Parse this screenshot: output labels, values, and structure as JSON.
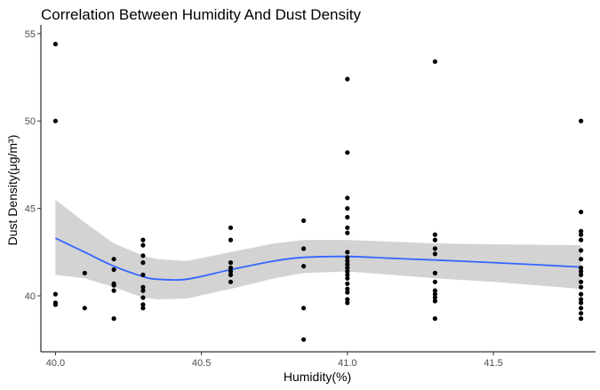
{
  "chart_data": {
    "type": "scatter",
    "title": "Correlation Between Humidity And Dust Density",
    "xlabel": "Humidity(%)",
    "ylabel": "Dust Density(μg/m³)",
    "xlim": [
      39.95,
      41.85
    ],
    "ylim": [
      36.8,
      55.5
    ],
    "xticks": [
      40.0,
      40.5,
      41.0,
      41.5
    ],
    "xtick_labels": [
      "40.0",
      "40.5",
      "41.0",
      "41.5"
    ],
    "yticks": [
      40,
      45,
      50,
      55
    ],
    "ytick_labels": [
      "40",
      "45",
      "50",
      "55"
    ],
    "grid": false,
    "legend": "none",
    "colors": {
      "points": "#000000",
      "smooth_line": "#3366ff",
      "confidence_band": "#d3d3d3"
    },
    "points": [
      {
        "x": 40.0,
        "y": 54.4
      },
      {
        "x": 40.0,
        "y": 50.0
      },
      {
        "x": 40.0,
        "y": 40.1
      },
      {
        "x": 40.0,
        "y": 39.6
      },
      {
        "x": 40.0,
        "y": 39.5
      },
      {
        "x": 40.1,
        "y": 41.3
      },
      {
        "x": 40.1,
        "y": 39.3
      },
      {
        "x": 40.2,
        "y": 42.1
      },
      {
        "x": 40.2,
        "y": 41.5
      },
      {
        "x": 40.2,
        "y": 40.7
      },
      {
        "x": 40.2,
        "y": 40.6
      },
      {
        "x": 40.2,
        "y": 40.3
      },
      {
        "x": 40.2,
        "y": 38.7
      },
      {
        "x": 40.3,
        "y": 43.2
      },
      {
        "x": 40.3,
        "y": 42.9
      },
      {
        "x": 40.3,
        "y": 42.3
      },
      {
        "x": 40.3,
        "y": 41.9
      },
      {
        "x": 40.3,
        "y": 41.2
      },
      {
        "x": 40.3,
        "y": 40.5
      },
      {
        "x": 40.3,
        "y": 40.3
      },
      {
        "x": 40.3,
        "y": 39.9
      },
      {
        "x": 40.3,
        "y": 39.5
      },
      {
        "x": 40.3,
        "y": 39.3
      },
      {
        "x": 40.6,
        "y": 43.9
      },
      {
        "x": 40.6,
        "y": 43.2
      },
      {
        "x": 40.6,
        "y": 41.9
      },
      {
        "x": 40.6,
        "y": 41.6
      },
      {
        "x": 40.6,
        "y": 41.4
      },
      {
        "x": 40.6,
        "y": 41.2
      },
      {
        "x": 40.6,
        "y": 40.8
      },
      {
        "x": 40.85,
        "y": 44.3
      },
      {
        "x": 40.85,
        "y": 42.7
      },
      {
        "x": 40.85,
        "y": 41.7
      },
      {
        "x": 40.85,
        "y": 39.3
      },
      {
        "x": 40.85,
        "y": 37.5
      },
      {
        "x": 41.0,
        "y": 52.4
      },
      {
        "x": 41.0,
        "y": 48.2
      },
      {
        "x": 41.0,
        "y": 45.6
      },
      {
        "x": 41.0,
        "y": 45.0
      },
      {
        "x": 41.0,
        "y": 44.5
      },
      {
        "x": 41.0,
        "y": 43.9
      },
      {
        "x": 41.0,
        "y": 43.6
      },
      {
        "x": 41.0,
        "y": 42.5
      },
      {
        "x": 41.0,
        "y": 42.2
      },
      {
        "x": 41.0,
        "y": 42.0
      },
      {
        "x": 41.0,
        "y": 41.8
      },
      {
        "x": 41.0,
        "y": 41.6
      },
      {
        "x": 41.0,
        "y": 41.4
      },
      {
        "x": 41.0,
        "y": 41.2
      },
      {
        "x": 41.0,
        "y": 41.0
      },
      {
        "x": 41.0,
        "y": 40.7
      },
      {
        "x": 41.0,
        "y": 40.4
      },
      {
        "x": 41.0,
        "y": 40.2
      },
      {
        "x": 41.0,
        "y": 39.8
      },
      {
        "x": 41.0,
        "y": 39.6
      },
      {
        "x": 41.3,
        "y": 53.4
      },
      {
        "x": 41.3,
        "y": 43.5
      },
      {
        "x": 41.3,
        "y": 43.2
      },
      {
        "x": 41.3,
        "y": 42.7
      },
      {
        "x": 41.3,
        "y": 42.4
      },
      {
        "x": 41.3,
        "y": 41.3
      },
      {
        "x": 41.3,
        "y": 40.8
      },
      {
        "x": 41.3,
        "y": 40.3
      },
      {
        "x": 41.3,
        "y": 40.1
      },
      {
        "x": 41.3,
        "y": 39.9
      },
      {
        "x": 41.3,
        "y": 39.7
      },
      {
        "x": 41.3,
        "y": 38.7
      },
      {
        "x": 41.8,
        "y": 50.0
      },
      {
        "x": 41.8,
        "y": 44.8
      },
      {
        "x": 41.8,
        "y": 43.7
      },
      {
        "x": 41.8,
        "y": 43.5
      },
      {
        "x": 41.8,
        "y": 43.2
      },
      {
        "x": 41.8,
        "y": 42.6
      },
      {
        "x": 41.8,
        "y": 42.1
      },
      {
        "x": 41.8,
        "y": 41.6
      },
      {
        "x": 41.8,
        "y": 41.4
      },
      {
        "x": 41.8,
        "y": 41.2
      },
      {
        "x": 41.8,
        "y": 40.8
      },
      {
        "x": 41.8,
        "y": 40.5
      },
      {
        "x": 41.8,
        "y": 40.1
      },
      {
        "x": 41.8,
        "y": 39.8
      },
      {
        "x": 41.8,
        "y": 39.6
      },
      {
        "x": 41.8,
        "y": 39.3
      },
      {
        "x": 41.8,
        "y": 39.0
      },
      {
        "x": 41.8,
        "y": 38.7
      }
    ],
    "smooth": {
      "x": [
        40.0,
        40.1,
        40.2,
        40.3,
        40.35,
        40.45,
        40.6,
        40.75,
        40.85,
        41.0,
        41.15,
        41.3,
        41.5,
        41.8
      ],
      "y": [
        43.3,
        42.5,
        41.7,
        41.1,
        40.95,
        40.95,
        41.5,
        42.0,
        42.2,
        42.25,
        42.15,
        42.05,
        41.9,
        41.65
      ],
      "lower": [
        41.2,
        41.0,
        40.5,
        39.9,
        39.8,
        39.85,
        40.4,
        41.0,
        41.3,
        41.4,
        41.2,
        41.0,
        40.8,
        40.4
      ],
      "upper": [
        45.5,
        44.2,
        43.0,
        42.3,
        42.1,
        42.0,
        42.5,
        43.0,
        43.2,
        43.2,
        43.1,
        43.0,
        42.95,
        42.9
      ]
    }
  }
}
